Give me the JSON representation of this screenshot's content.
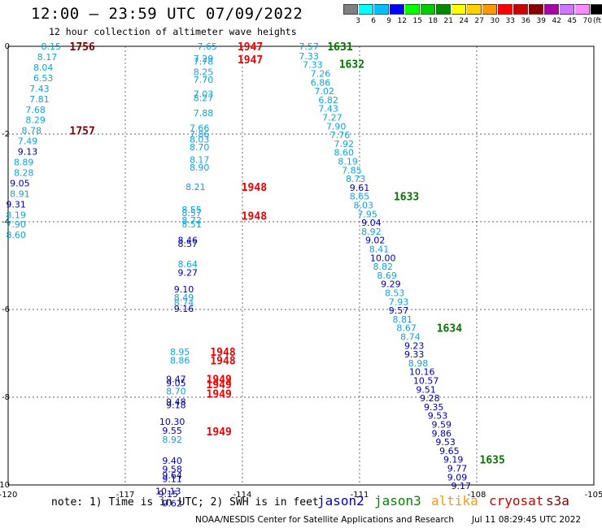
{
  "header": {
    "title": "12:00 – 23:59 UTC 07/09/2022",
    "subtitle": "12 hour collection of altimeter wave heights"
  },
  "colorbar": {
    "unit": "(ft)",
    "cells": [
      {
        "color": "#7f7f7f",
        "label": "3"
      },
      {
        "color": "#00ffff",
        "label": "6"
      },
      {
        "color": "#00bfff",
        "label": "9"
      },
      {
        "color": "#0000ff",
        "label": "12"
      },
      {
        "color": "#00ff00",
        "label": "15"
      },
      {
        "color": "#00cc00",
        "label": "18"
      },
      {
        "color": "#008800",
        "label": "21"
      },
      {
        "color": "#ffff00",
        "label": "24"
      },
      {
        "color": "#ffd000",
        "label": "27"
      },
      {
        "color": "#ff9900",
        "label": "30"
      },
      {
        "color": "#ff0000",
        "label": "33"
      },
      {
        "color": "#cc0000",
        "label": "36"
      },
      {
        "color": "#880000",
        "label": "39"
      },
      {
        "color": "#aa00aa",
        "label": "42"
      },
      {
        "color": "#cc77ff",
        "label": "45"
      },
      {
        "color": "#ff88ff",
        "label": "70"
      },
      {
        "color": "#000000",
        "label": ""
      }
    ]
  },
  "note": "note: 1) Time is in UTC; 2) SWH is in feet",
  "legend": [
    {
      "label": "jason2",
      "color": "#0000cc"
    },
    {
      "label": "jason3",
      "color": "#008800"
    },
    {
      "label": "altika",
      "color": "#ff9900"
    },
    {
      "label": "cryosat",
      "color": "#cc0000"
    },
    {
      "label": "s3a",
      "color": "#880000"
    }
  ],
  "footer": {
    "credit": "NOAA/NESDIS Center for Satellite Applications and Research",
    "timestamp": "Jul 11 08:29:45 UTC 2022"
  },
  "chart_data": {
    "type": "scatter",
    "xlim": [
      -120,
      -105
    ],
    "ylim": [
      -10,
      0
    ],
    "x_ticks": [
      "-120",
      "-117",
      "-114",
      "-111",
      "-108",
      "-105"
    ],
    "y_ticks": [
      "0",
      "-2",
      "-4",
      "-6",
      "-8",
      "-10"
    ],
    "grid": true,
    "colors": {
      "light_blue": "#12a3d6",
      "navy": "#0000aa",
      "red": "#ee0000",
      "dark_red": "#7a0000",
      "green": "#007700"
    },
    "series": [
      {
        "name": "track-west",
        "color_key": "light_blue",
        "points": [
          {
            "x": -118.9,
            "y": 0.0,
            "v": "8.15"
          },
          {
            "x": -119.0,
            "y": -0.24,
            "v": "8.17"
          },
          {
            "x": -119.1,
            "y": -0.48,
            "v": "8.04"
          },
          {
            "x": -119.1,
            "y": -0.72,
            "v": "6.53"
          },
          {
            "x": -119.2,
            "y": -0.96,
            "v": "7.43"
          },
          {
            "x": -119.2,
            "y": -1.2,
            "v": "7.81"
          },
          {
            "x": -119.3,
            "y": -1.44,
            "v": "7.68"
          },
          {
            "x": -119.3,
            "y": -1.68,
            "v": "8.29"
          },
          {
            "x": -119.4,
            "y": -1.92,
            "v": "8.78"
          },
          {
            "x": -119.5,
            "y": -2.16,
            "v": "7.49"
          },
          {
            "x": -119.5,
            "y": -2.4,
            "v": "9.13",
            "c": "navy"
          },
          {
            "x": -119.6,
            "y": -2.64,
            "v": "8.89"
          },
          {
            "x": -119.6,
            "y": -2.88,
            "v": "8.28"
          },
          {
            "x": -119.7,
            "y": -3.12,
            "v": "9.05",
            "c": "navy"
          },
          {
            "x": -119.7,
            "y": -3.36,
            "v": "8.91"
          },
          {
            "x": -119.8,
            "y": -3.6,
            "v": "9.31",
            "c": "navy"
          },
          {
            "x": -119.8,
            "y": -3.84,
            "v": "8.19"
          },
          {
            "x": -119.8,
            "y": -4.06,
            "v": "7.90"
          },
          {
            "x": -119.8,
            "y": -4.3,
            "v": "8.60"
          }
        ]
      },
      {
        "name": "track-middle",
        "color_key": "light_blue",
        "points": [
          {
            "x": -114.9,
            "y": 0.0,
            "v": "7.65"
          },
          {
            "x": -115.0,
            "y": -0.28,
            "v": "7.29"
          },
          {
            "x": -115.0,
            "y": -0.34,
            "v": "7.78"
          },
          {
            "x": -115.0,
            "y": -0.58,
            "v": "8.25"
          },
          {
            "x": -115.0,
            "y": -0.76,
            "v": "7.70"
          },
          {
            "x": -115.0,
            "y": -1.08,
            "v": "7.03"
          },
          {
            "x": -115.0,
            "y": -1.18,
            "v": "8.27"
          },
          {
            "x": -115.0,
            "y": -1.52,
            "v": "7.88"
          },
          {
            "x": -115.1,
            "y": -1.86,
            "v": "7.66"
          },
          {
            "x": -115.1,
            "y": -2.0,
            "v": "7.86"
          },
          {
            "x": -115.1,
            "y": -2.12,
            "v": "8.03"
          },
          {
            "x": -115.1,
            "y": -2.3,
            "v": "8.70"
          },
          {
            "x": -115.1,
            "y": -2.58,
            "v": "8.17"
          },
          {
            "x": -115.1,
            "y": -2.76,
            "v": "8.90"
          },
          {
            "x": -115.2,
            "y": -3.2,
            "v": "8.21"
          },
          {
            "x": -115.3,
            "y": -3.72,
            "v": "8.55"
          },
          {
            "x": -115.3,
            "y": -3.8,
            "v": "8.57"
          },
          {
            "x": -115.3,
            "y": -3.96,
            "v": "8.72"
          },
          {
            "x": -115.3,
            "y": -4.06,
            "v": "8.51"
          },
          {
            "x": -115.4,
            "y": -4.42,
            "v": "8.46",
            "c": "navy"
          },
          {
            "x": -115.4,
            "y": -4.5,
            "v": "8.57",
            "c": "navy"
          },
          {
            "x": -115.4,
            "y": -4.96,
            "v": "8.64"
          },
          {
            "x": -115.4,
            "y": -5.16,
            "v": "9.27",
            "c": "navy"
          },
          {
            "x": -115.5,
            "y": -5.54,
            "v": "9.10",
            "c": "navy"
          },
          {
            "x": -115.5,
            "y": -5.72,
            "v": "8.49"
          },
          {
            "x": -115.5,
            "y": -5.84,
            "v": "8.74"
          },
          {
            "x": -115.5,
            "y": -5.98,
            "v": "9.16",
            "c": "navy"
          },
          {
            "x": -115.6,
            "y": -6.96,
            "v": "8.95"
          },
          {
            "x": -115.6,
            "y": -7.16,
            "v": "8.86"
          },
          {
            "x": -115.7,
            "y": -7.58,
            "v": "9.47",
            "c": "navy"
          },
          {
            "x": -115.7,
            "y": -7.68,
            "v": "9.05",
            "c": "navy"
          },
          {
            "x": -115.7,
            "y": -7.86,
            "v": "8.70"
          },
          {
            "x": -115.7,
            "y": -8.1,
            "v": "9.48",
            "c": "navy"
          },
          {
            "x": -115.7,
            "y": -8.18,
            "v": "9.18",
            "c": "navy"
          },
          {
            "x": -115.8,
            "y": -8.56,
            "v": "10.30",
            "c": "navy"
          },
          {
            "x": -115.8,
            "y": -8.76,
            "v": "9.55",
            "c": "navy"
          },
          {
            "x": -115.8,
            "y": -8.96,
            "v": "8.92"
          },
          {
            "x": -115.8,
            "y": -9.44,
            "v": "9.40",
            "c": "navy"
          },
          {
            "x": -115.8,
            "y": -9.64,
            "v": "9.58",
            "c": "navy"
          },
          {
            "x": -115.8,
            "y": -9.78,
            "v": "9.64",
            "c": "navy"
          },
          {
            "x": -115.8,
            "y": -9.86,
            "v": "9.11",
            "c": "navy"
          },
          {
            "x": -115.9,
            "y": -10.14,
            "v": "10.13",
            "c": "navy"
          },
          {
            "x": -115.9,
            "y": -10.2,
            "v": "9.15",
            "c": "navy"
          },
          {
            "x": -115.8,
            "y": -10.42,
            "v": "9.62",
            "c": "navy"
          }
        ]
      },
      {
        "name": "track-east",
        "color_key": "light_blue",
        "points": [
          {
            "x": -112.3,
            "y": 0.0,
            "v": "7.57"
          },
          {
            "x": -112.3,
            "y": -0.22,
            "v": "7.33"
          },
          {
            "x": -112.2,
            "y": -0.42,
            "v": "7.33"
          },
          {
            "x": -112.0,
            "y": -0.62,
            "v": "7.26"
          },
          {
            "x": -112.0,
            "y": -0.82,
            "v": "6.86"
          },
          {
            "x": -111.9,
            "y": -1.02,
            "v": "7.02"
          },
          {
            "x": -111.8,
            "y": -1.22,
            "v": "6.82"
          },
          {
            "x": -111.8,
            "y": -1.42,
            "v": "7.43"
          },
          {
            "x": -111.7,
            "y": -1.62,
            "v": "7.27"
          },
          {
            "x": -111.6,
            "y": -1.82,
            "v": "7.90"
          },
          {
            "x": -111.5,
            "y": -2.02,
            "v": "7.76"
          },
          {
            "x": -111.4,
            "y": -2.22,
            "v": "7.92"
          },
          {
            "x": -111.4,
            "y": -2.42,
            "v": "8.60"
          },
          {
            "x": -111.3,
            "y": -2.62,
            "v": "8.19"
          },
          {
            "x": -111.2,
            "y": -2.82,
            "v": "7.85"
          },
          {
            "x": -111.1,
            "y": -3.02,
            "v": "8.73"
          },
          {
            "x": -111.0,
            "y": -3.22,
            "v": "9.61",
            "c": "navy"
          },
          {
            "x": -111.0,
            "y": -3.42,
            "v": "8.65"
          },
          {
            "x": -110.9,
            "y": -3.62,
            "v": "8.03"
          },
          {
            "x": -110.8,
            "y": -3.82,
            "v": "7.95"
          },
          {
            "x": -110.7,
            "y": -4.02,
            "v": "9.04",
            "c": "navy"
          },
          {
            "x": -110.7,
            "y": -4.22,
            "v": "8.92"
          },
          {
            "x": -110.6,
            "y": -4.42,
            "v": "9.02",
            "c": "navy"
          },
          {
            "x": -110.5,
            "y": -4.62,
            "v": "8.41"
          },
          {
            "x": -110.4,
            "y": -4.82,
            "v": "10.00",
            "c": "navy"
          },
          {
            "x": -110.4,
            "y": -5.02,
            "v": "8.82"
          },
          {
            "x": -110.3,
            "y": -5.22,
            "v": "8.69"
          },
          {
            "x": -110.2,
            "y": -5.42,
            "v": "9.29",
            "c": "navy"
          },
          {
            "x": -110.1,
            "y": -5.62,
            "v": "8.53"
          },
          {
            "x": -110.0,
            "y": -5.82,
            "v": "7.93"
          },
          {
            "x": -110.0,
            "y": -6.02,
            "v": "9.57",
            "c": "navy"
          },
          {
            "x": -109.9,
            "y": -6.22,
            "v": "8.81"
          },
          {
            "x": -109.8,
            "y": -6.42,
            "v": "8.67"
          },
          {
            "x": -109.7,
            "y": -6.62,
            "v": "8.74"
          },
          {
            "x": -109.6,
            "y": -6.82,
            "v": "9.23",
            "c": "navy"
          },
          {
            "x": -109.6,
            "y": -7.02,
            "v": "9.33",
            "c": "navy"
          },
          {
            "x": -109.5,
            "y": -7.22,
            "v": "8.98"
          },
          {
            "x": -109.4,
            "y": -7.42,
            "v": "10.16",
            "c": "navy"
          },
          {
            "x": -109.3,
            "y": -7.62,
            "v": "10.57",
            "c": "navy"
          },
          {
            "x": -109.3,
            "y": -7.82,
            "v": "9.51",
            "c": "navy"
          },
          {
            "x": -109.2,
            "y": -8.02,
            "v": "9.28",
            "c": "navy"
          },
          {
            "x": -109.1,
            "y": -8.22,
            "v": "9.35",
            "c": "navy"
          },
          {
            "x": -109.0,
            "y": -8.42,
            "v": "9.53",
            "c": "navy"
          },
          {
            "x": -108.9,
            "y": -8.62,
            "v": "9.59",
            "c": "navy"
          },
          {
            "x": -108.9,
            "y": -8.82,
            "v": "9.86",
            "c": "navy"
          },
          {
            "x": -108.8,
            "y": -9.02,
            "v": "9.53",
            "c": "navy"
          },
          {
            "x": -108.7,
            "y": -9.22,
            "v": "9.65",
            "c": "navy"
          },
          {
            "x": -108.6,
            "y": -9.42,
            "v": "9.19",
            "c": "navy"
          },
          {
            "x": -108.5,
            "y": -9.62,
            "v": "9.77",
            "c": "navy"
          },
          {
            "x": -108.5,
            "y": -9.82,
            "v": "9.09",
            "c": "navy"
          },
          {
            "x": -108.4,
            "y": -10.02,
            "v": "9.17",
            "c": "navy"
          }
        ]
      }
    ],
    "time_labels": [
      {
        "x": -118.1,
        "y": 0.0,
        "t": "1756",
        "c": "dark_red"
      },
      {
        "x": -118.1,
        "y": -1.92,
        "t": "1757",
        "c": "dark_red"
      },
      {
        "x": -113.8,
        "y": 0.0,
        "t": "1947",
        "c": "red"
      },
      {
        "x": -113.8,
        "y": -0.3,
        "t": "1947",
        "c": "red"
      },
      {
        "x": -113.7,
        "y": -3.2,
        "t": "1948",
        "c": "red"
      },
      {
        "x": -113.7,
        "y": -3.86,
        "t": "1948",
        "c": "red"
      },
      {
        "x": -114.5,
        "y": -6.96,
        "t": "1948",
        "c": "red"
      },
      {
        "x": -114.5,
        "y": -7.16,
        "t": "1948",
        "c": "red"
      },
      {
        "x": -114.6,
        "y": -7.58,
        "t": "1949",
        "c": "red"
      },
      {
        "x": -114.6,
        "y": -7.7,
        "t": "1949",
        "c": "red"
      },
      {
        "x": -114.6,
        "y": -7.92,
        "t": "1949",
        "c": "red"
      },
      {
        "x": -114.6,
        "y": -8.78,
        "t": "1949",
        "c": "red"
      },
      {
        "x": -111.5,
        "y": 0.0,
        "t": "1631",
        "c": "green"
      },
      {
        "x": -111.2,
        "y": -0.4,
        "t": "1632",
        "c": "green"
      },
      {
        "x": -109.8,
        "y": -3.42,
        "t": "1633",
        "c": "green"
      },
      {
        "x": -108.7,
        "y": -6.42,
        "t": "1634",
        "c": "green"
      },
      {
        "x": -107.6,
        "y": -9.42,
        "t": "1635",
        "c": "green"
      }
    ]
  }
}
